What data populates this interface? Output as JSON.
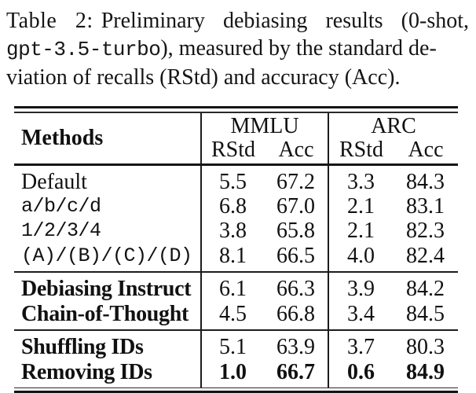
{
  "caption": {
    "label": "Table 2:",
    "line1_rest": "Preliminary debiasing results (0-shot,",
    "line2_mono": "gpt-3.5-turbo",
    "line2_rest": "), measured by the standard de-",
    "line3": "viation of recalls (RStd) and accuracy (Acc)."
  },
  "table": {
    "header": {
      "methods": "Methods",
      "groups": [
        {
          "name": "MMLU",
          "cols": [
            "RStd",
            "Acc"
          ]
        },
        {
          "name": "ARC",
          "cols": [
            "RStd",
            "Acc"
          ]
        }
      ]
    },
    "sections": [
      {
        "rows": [
          {
            "label": "Default",
            "values": [
              "5.5",
              "67.2",
              "3.3",
              "84.3"
            ]
          },
          {
            "label": "a/b/c/d",
            "values": [
              "6.8",
              "67.0",
              "2.1",
              "83.1"
            ]
          },
          {
            "label": "1/2/3/4",
            "values": [
              "3.8",
              "65.8",
              "2.1",
              "82.3"
            ]
          },
          {
            "label": "(A)/(B)/(C)/(D)",
            "values": [
              "8.1",
              "66.5",
              "4.0",
              "82.4"
            ]
          }
        ]
      },
      {
        "rows": [
          {
            "label": "Debiasing Instruct",
            "values": [
              "6.1",
              "66.3",
              "3.9",
              "84.2"
            ]
          },
          {
            "label": "Chain-of-Thought",
            "values": [
              "4.5",
              "66.8",
              "3.4",
              "84.5"
            ]
          }
        ]
      },
      {
        "rows": [
          {
            "label": "Shuffling IDs",
            "values": [
              "5.1",
              "63.9",
              "3.7",
              "80.3"
            ]
          },
          {
            "label": "Removing IDs",
            "values": [
              "1.0",
              "66.7",
              "0.6",
              "84.9"
            ]
          }
        ]
      }
    ],
    "ink_color": "#151515",
    "background_color": "#ffffff"
  }
}
